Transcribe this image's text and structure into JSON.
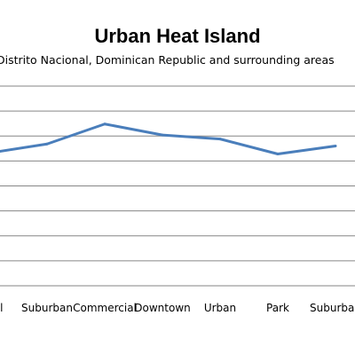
{
  "chart_data": {
    "type": "line",
    "title": "Urban Heat Island",
    "subtitle": "Distrito Nacional, Dominican Republic and surrounding areas",
    "categories": [
      "Rural",
      "Suburban",
      "Commercial",
      "Downtown",
      "Urban",
      "Park",
      "Suburban"
    ],
    "values": [
      5.3,
      6.2,
      8.2,
      7.1,
      6.7,
      5.2,
      6.0
    ],
    "ylim": [
      -8,
      12
    ],
    "grid": true,
    "legend": "none",
    "colors": {
      "line": "#4a7ebb",
      "grid": "#868686"
    }
  }
}
